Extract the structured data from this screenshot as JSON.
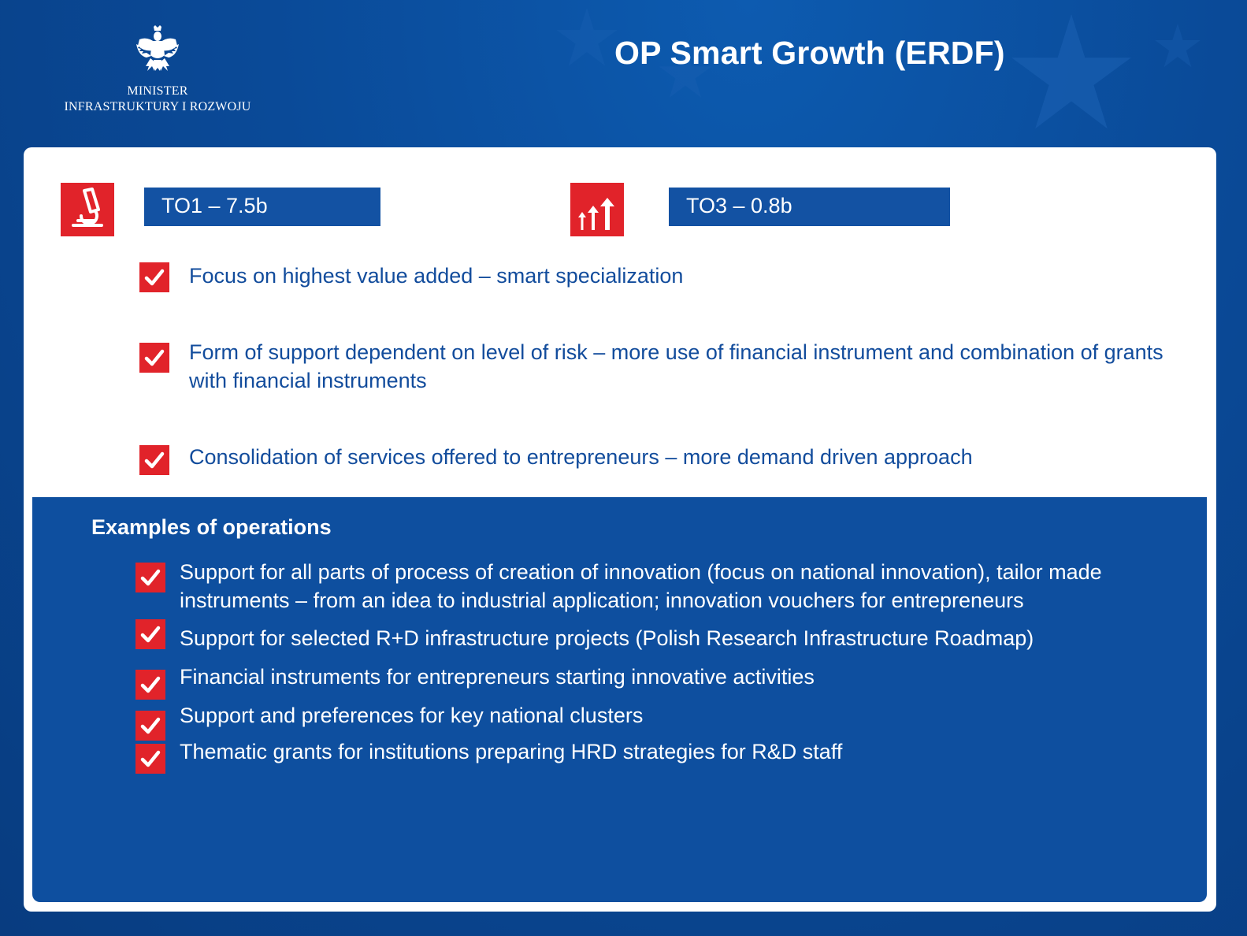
{
  "header": {
    "title": "OP Smart Growth (ERDF)",
    "ministry_line1": "MINISTER",
    "ministry_line2": "INFRASTRUKTURY I ROZWOJU"
  },
  "thematic_objectives": [
    {
      "label": "TO1 – 7.5b",
      "icon": "microscope-icon"
    },
    {
      "label": "TO3 – 0.8b",
      "icon": "growth-arrows-icon"
    }
  ],
  "priorities": [
    "Focus on highest value added – smart specialization",
    "Form of support dependent on level of risk – more use of financial instrument and combination of grants with financial instruments",
    "Consolidation of services offered to entrepreneurs – more demand driven approach"
  ],
  "examples": {
    "title": "Examples of operations",
    "items": [
      "Support for all parts of process of creation of innovation (focus on national innovation), tailor made instruments – from an idea to industrial application; innovation vouchers for entrepreneurs",
      "Support for selected R+D infrastructure projects (Polish Research Infrastructure Roadmap)",
      "Financial instruments for entrepreneurs starting innovative activities",
      "Support and preferences for key national clusters",
      "Thematic grants for institutions preparing HRD strategies for R&D staff"
    ]
  },
  "colors": {
    "background": "#0a4a98",
    "accent_red": "#e1232a",
    "bar_blue": "#1352a3",
    "text_blue": "#124c9c"
  }
}
